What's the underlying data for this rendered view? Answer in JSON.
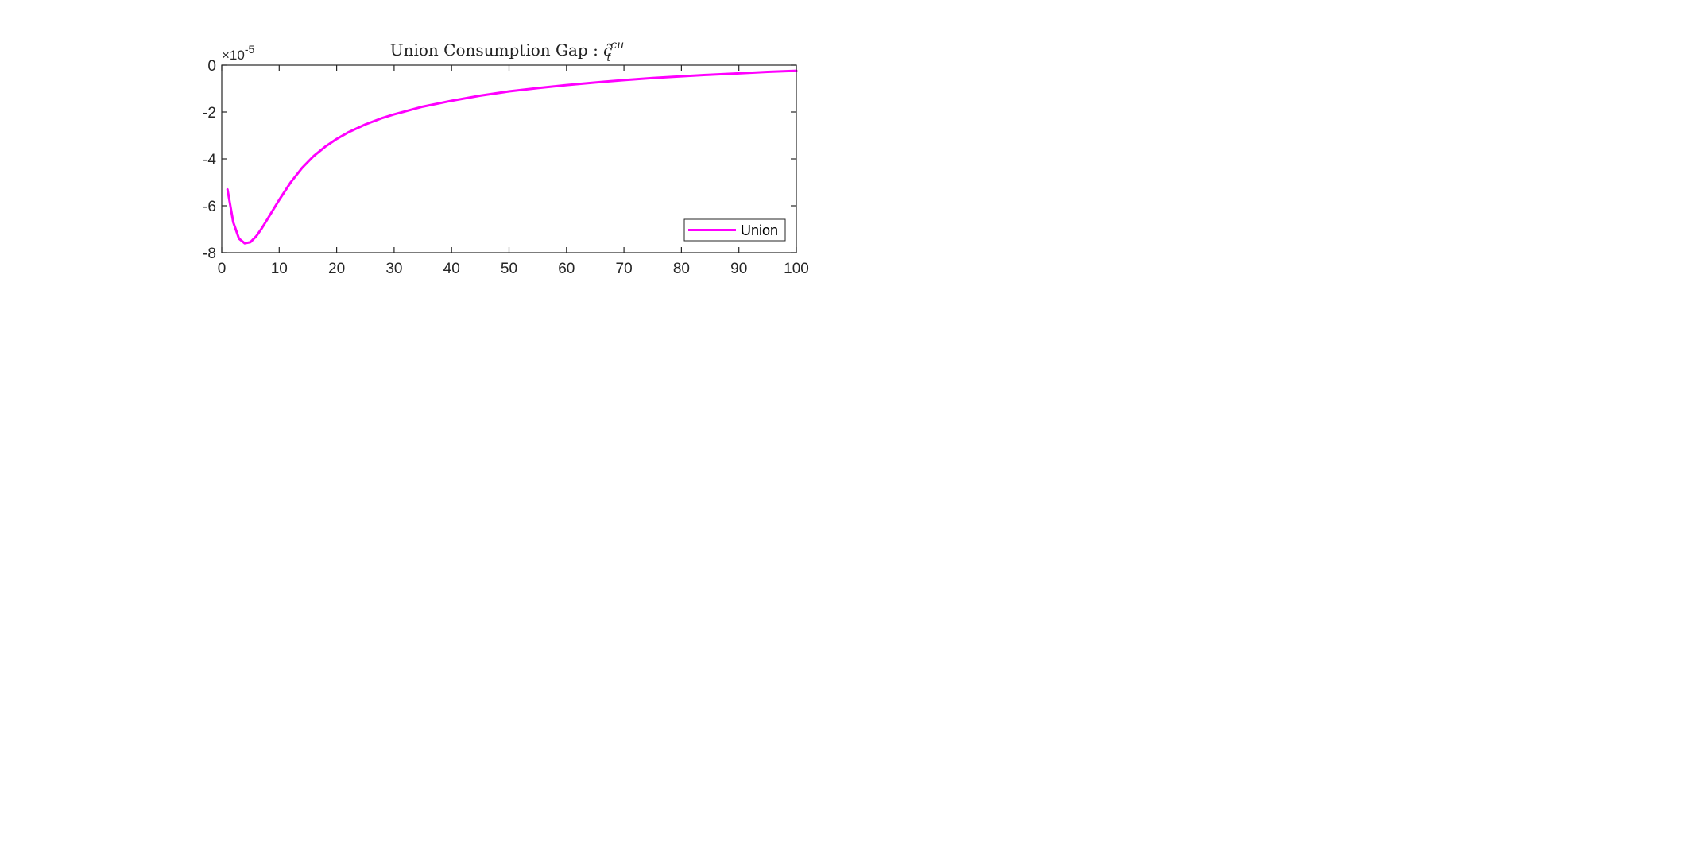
{
  "chart_data": {
    "type": "line",
    "title": "Union Consumption Gap : ",
    "title_math": {
      "base": "c̃",
      "subscript": "t",
      "superscript": "cu"
    },
    "xlabel": "",
    "ylabel": "",
    "xlim": [
      0,
      100
    ],
    "ylim": [
      -8,
      0
    ],
    "y_exponent_label": "×10",
    "y_exponent_power": "-5",
    "xticks": [
      "0",
      "10",
      "20",
      "30",
      "40",
      "50",
      "60",
      "70",
      "80",
      "90",
      "100"
    ],
    "yticks": [
      "0",
      "-2",
      "-4",
      "-6",
      "-8"
    ],
    "grid": false,
    "legend_position": "bottom-right",
    "series": [
      {
        "name": "Union",
        "color": "#ff00ff",
        "x": [
          1,
          2,
          3,
          4,
          5,
          6,
          7,
          8,
          9,
          10,
          12,
          14,
          16,
          18,
          20,
          22,
          25,
          28,
          30,
          35,
          40,
          45,
          50,
          55,
          60,
          65,
          70,
          75,
          80,
          85,
          90,
          95,
          100
        ],
        "y": [
          -5.3,
          -6.7,
          -7.4,
          -7.6,
          -7.55,
          -7.3,
          -6.95,
          -6.55,
          -6.15,
          -5.75,
          -5.0,
          -4.38,
          -3.88,
          -3.48,
          -3.15,
          -2.87,
          -2.53,
          -2.25,
          -2.1,
          -1.77,
          -1.52,
          -1.3,
          -1.12,
          -0.98,
          -0.85,
          -0.74,
          -0.64,
          -0.55,
          -0.48,
          -0.41,
          -0.35,
          -0.29,
          -0.24
        ]
      }
    ]
  }
}
